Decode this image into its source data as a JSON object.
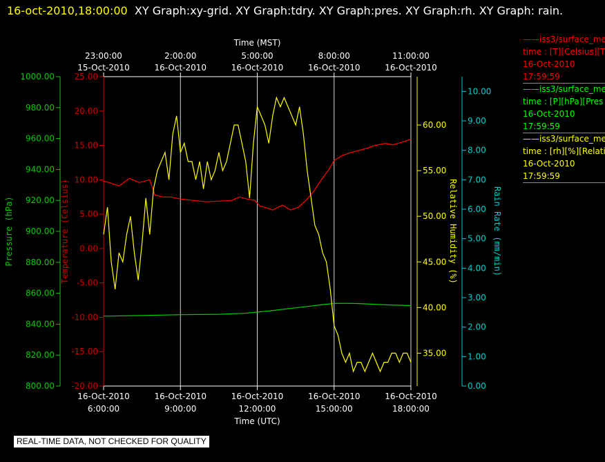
{
  "header": {
    "timestamp": "16-oct-2010,18:00:00",
    "graphs": "XY Graph:xy-grid.  XY Graph:tdry.  XY Graph:pres.  XY Graph:rh.  XY Graph: rain."
  },
  "notice": "REAL-TIME DATA, NOT CHECKED FOR QUALITY",
  "legend": [
    {
      "name": "iss3/surface_me",
      "units": "time : [T][Celsius][T",
      "date": "16-Oct-2010",
      "time": "17:59:59",
      "color": "#ff0000"
    },
    {
      "name": "iss3/surface_me",
      "units": "time : [P][hPa][Pres",
      "date": "16-Oct-2010",
      "time": "17:59:59",
      "color": "#00ff00"
    },
    {
      "name": "iss3/surface_me",
      "units": "time : [rh][%][Relati",
      "date": "16-Oct-2010",
      "time": "17:59:59",
      "color": "#ffff00"
    }
  ],
  "chart_data": {
    "type": "line",
    "x_bottom": {
      "label": "Time (UTC)",
      "ticks": [
        {
          "date": "16-Oct-2010",
          "time": "6:00:00"
        },
        {
          "date": "16-Oct-2010",
          "time": "9:00:00"
        },
        {
          "date": "16-Oct-2010",
          "time": "12:00:00"
        },
        {
          "date": "16-Oct-2010",
          "time": "15:00:00"
        },
        {
          "date": "16-Oct-2010",
          "time": "18:00:00"
        }
      ]
    },
    "x_top": {
      "label": "Time (MST)",
      "ticks": [
        {
          "time": "23:00:00",
          "date": "15-Oct-2010"
        },
        {
          "time": "2:00:00",
          "date": "16-Oct-2010"
        },
        {
          "time": "5:00:00",
          "date": "16-Oct-2010"
        },
        {
          "time": "8:00:00",
          "date": "16-Oct-2010"
        },
        {
          "time": "11:00:00",
          "date": "16-Oct-2010"
        }
      ]
    },
    "xlim": [
      6,
      18
    ],
    "y_axes": [
      {
        "key": "pres",
        "label": "Pressure (hPa)",
        "color": "#00cc00",
        "lim": [
          800,
          1000
        ],
        "ticks": [
          "800.00",
          "820.00",
          "840.00",
          "860.00",
          "880.00",
          "900.00",
          "920.00",
          "940.00",
          "960.00",
          "980.00",
          "1000.00"
        ]
      },
      {
        "key": "temp",
        "label": "Temperature (Celsius)",
        "color": "#cc0000",
        "lim": [
          -20,
          25
        ],
        "ticks": [
          "-20.00",
          "-15.00",
          "-10.00",
          "-5.00",
          "0.00",
          "5.00",
          "10.00",
          "15.00",
          "20.00",
          "25.00"
        ]
      },
      {
        "key": "rh",
        "label": "Relative Humidity (%)",
        "color": "#ffff00",
        "lim": [
          31.4,
          65.3
        ],
        "ticks": [
          "35.00",
          "40.00",
          "45.00",
          "50.00",
          "55.00",
          "60.00"
        ]
      },
      {
        "key": "rain",
        "label": "Rain Rate (mm/min)",
        "color": "#00cccc",
        "lim": [
          0,
          10.5
        ],
        "ticks": [
          "0.00",
          "1.00",
          "2.00",
          "3.00",
          "4.00",
          "5.00",
          "6.00",
          "7.00",
          "8.00",
          "9.00",
          "10.00"
        ]
      }
    ],
    "series": [
      {
        "axis": "temp",
        "color": "#ff0000",
        "x": [
          6.0,
          6.3,
          6.6,
          7.0,
          7.4,
          7.8,
          8.0,
          8.3,
          8.6,
          9.0,
          9.5,
          10.0,
          10.5,
          11.0,
          11.3,
          11.6,
          11.9,
          12.1,
          12.3,
          12.6,
          12.8,
          13.0,
          13.3,
          13.6,
          13.9,
          14.2,
          14.5,
          14.8,
          15.0,
          15.3,
          15.6,
          16.0,
          16.3,
          16.6,
          17.0,
          17.3,
          17.6,
          18.0
        ],
        "y": [
          9.8,
          9.5,
          9.1,
          10.2,
          9.6,
          10.0,
          7.8,
          7.5,
          7.5,
          7.2,
          7.0,
          6.8,
          6.9,
          7.0,
          7.5,
          7.2,
          7.0,
          6.2,
          6.0,
          5.6,
          6.0,
          6.3,
          5.6,
          6.0,
          7.0,
          8.3,
          10.0,
          11.5,
          12.8,
          13.5,
          13.9,
          14.3,
          14.6,
          15.0,
          15.3,
          15.1,
          15.4,
          15.9
        ]
      },
      {
        "axis": "pres",
        "color": "#00cc00",
        "x": [
          6.0,
          7.5,
          9.0,
          10.5,
          11.5,
          12.5,
          13.5,
          14.5,
          15.0,
          15.5,
          16.0,
          17.0,
          18.0
        ],
        "y": [
          845.2,
          845.6,
          846.1,
          846.4,
          847.0,
          848.6,
          850.6,
          852.5,
          853.4,
          853.5,
          853.3,
          852.5,
          852.0
        ]
      },
      {
        "axis": "rh",
        "color": "#ffff00",
        "x": [
          6.0,
          6.15,
          6.3,
          6.45,
          6.6,
          6.75,
          6.9,
          7.05,
          7.2,
          7.35,
          7.5,
          7.65,
          7.8,
          7.95,
          8.1,
          8.25,
          8.4,
          8.55,
          8.7,
          8.85,
          9.0,
          9.15,
          9.3,
          9.45,
          9.6,
          9.75,
          9.9,
          10.05,
          10.2,
          10.35,
          10.5,
          10.65,
          10.8,
          10.95,
          11.1,
          11.25,
          11.4,
          11.55,
          11.7,
          11.85,
          12.0,
          12.15,
          12.3,
          12.45,
          12.6,
          12.75,
          12.9,
          13.05,
          13.2,
          13.35,
          13.5,
          13.65,
          13.8,
          13.95,
          14.1,
          14.25,
          14.4,
          14.55,
          14.7,
          14.85,
          15.0,
          15.15,
          15.3,
          15.45,
          15.6,
          15.75,
          15.9,
          16.05,
          16.2,
          16.35,
          16.5,
          16.65,
          16.8,
          16.95,
          17.1,
          17.25,
          17.4,
          17.55,
          17.7,
          17.85,
          18.0
        ],
        "y": [
          48,
          51,
          45,
          42,
          46,
          45,
          48,
          50,
          46,
          43,
          47,
          52,
          48,
          53,
          55,
          56,
          57,
          54,
          59,
          61,
          57,
          58,
          56,
          56,
          54,
          56,
          53,
          56,
          54,
          55,
          57,
          55,
          56,
          58,
          60,
          60,
          58,
          56,
          52,
          58,
          62,
          61,
          60,
          58,
          61,
          63,
          62,
          63,
          62,
          61,
          60,
          62,
          59,
          55,
          52,
          49,
          48,
          46,
          45,
          42,
          38,
          37,
          35,
          34,
          35,
          33,
          34,
          34,
          33,
          34,
          35,
          34,
          33,
          34,
          34,
          35,
          35,
          34,
          35,
          35,
          34
        ]
      },
      {
        "axis": "rain",
        "color": "#00cccc",
        "x": [],
        "y": []
      }
    ]
  }
}
